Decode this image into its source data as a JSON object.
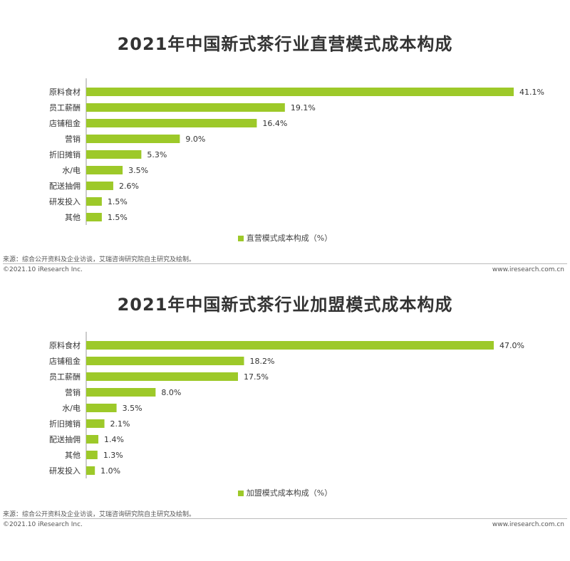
{
  "colors": {
    "bar": "#9dc929",
    "axis": "#999999",
    "text": "#333333"
  },
  "chart_data": [
    {
      "type": "bar",
      "orientation": "horizontal",
      "title": "2021年中国新式茶行业直营模式成本构成",
      "categories": [
        "原料食材",
        "员工薪酬",
        "店铺租金",
        "营销",
        "折旧摊销",
        "水/电",
        "配送抽佣",
        "研发投入",
        "其他"
      ],
      "values": [
        41.1,
        19.1,
        16.4,
        9.0,
        5.3,
        3.5,
        2.6,
        1.5,
        1.5
      ],
      "value_labels": [
        "41.1%",
        "19.1%",
        "16.4%",
        "9.0%",
        "5.3%",
        "3.5%",
        "2.6%",
        "1.5%",
        "1.5%"
      ],
      "series": [
        {
          "name": "直营模式成本构成（%）"
        }
      ],
      "legend": "直营模式成本构成（%）",
      "legend_position": "bottom",
      "grid": false
    },
    {
      "type": "bar",
      "orientation": "horizontal",
      "title": "2021年中国新式茶行业加盟模式成本构成",
      "categories": [
        "原料食材",
        "店铺租金",
        "员工薪酬",
        "营销",
        "水/电",
        "折旧摊销",
        "配送抽佣",
        "其他",
        "研发投入"
      ],
      "values": [
        47.0,
        18.2,
        17.5,
        8.0,
        3.5,
        2.1,
        1.4,
        1.3,
        1.0
      ],
      "value_labels": [
        "47.0%",
        "18.2%",
        "17.5%",
        "8.0%",
        "3.5%",
        "2.1%",
        "1.4%",
        "1.3%",
        "1.0%"
      ],
      "series": [
        {
          "name": "加盟模式成本构成（%）"
        }
      ],
      "legend": "加盟模式成本构成（%）",
      "legend_position": "bottom",
      "grid": false
    }
  ],
  "panels": [
    {
      "source": "来源：综合公开资料及企业访谈，艾瑞咨询研究院自主研究及绘制。",
      "copyright": "©2021.10 iResearch Inc.",
      "site": "www.iresearch.com.cn"
    },
    {
      "source": "来源：综合公开资料及企业访谈，艾瑞咨询研究院自主研究及绘制。",
      "copyright": "©2021.10 iResearch Inc.",
      "site": "www.iresearch.com.cn"
    }
  ]
}
